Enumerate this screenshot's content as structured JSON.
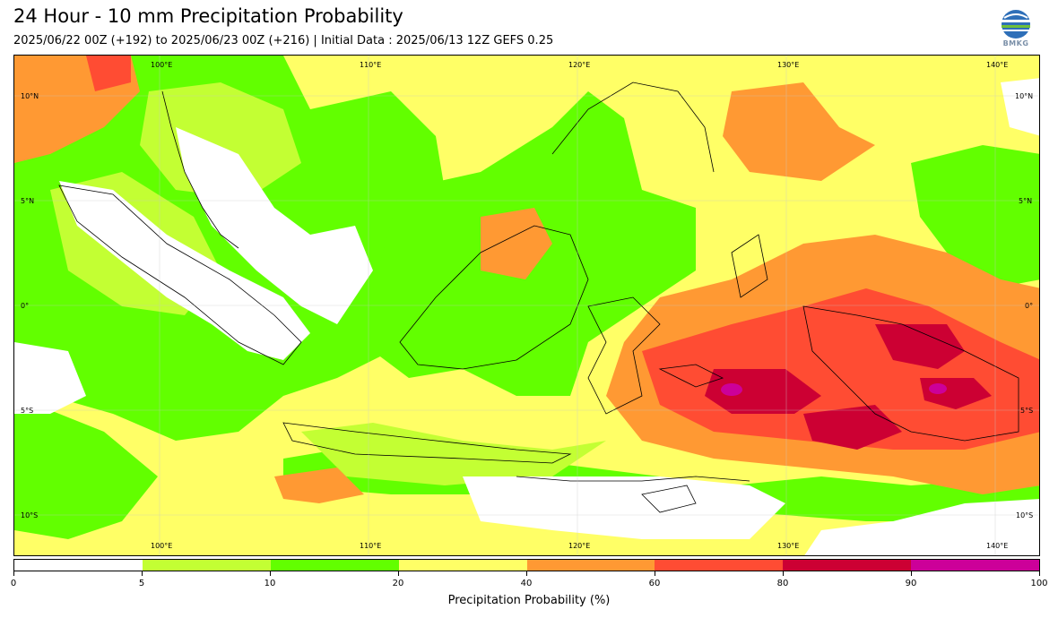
{
  "header": {
    "title": "24 Hour - 10 mm Precipitation Probability",
    "subtitle": "2025/06/22 00Z (+192) to 2025/06/23 00Z (+216) | Initial Data : 2025/06/13 12Z GEFS 0.25",
    "logo_text": "BMKG"
  },
  "map": {
    "lon_labels": [
      "100°E",
      "110°E",
      "120°E",
      "130°E",
      "140°E"
    ],
    "lat_labels": [
      "10°N",
      "5°N",
      "0°",
      "5°S",
      "10°S"
    ]
  },
  "colorbar": {
    "label": "Precipitation Probability (%)",
    "ticks": [
      "0",
      "5",
      "10",
      "20",
      "40",
      "60",
      "80",
      "90",
      "100"
    ],
    "colors": [
      "#ffffff",
      "#c3ff33",
      "#62ff00",
      "#ffff66",
      "#ff9933",
      "#ff4c33",
      "#cc0033",
      "#cc0099"
    ]
  }
}
